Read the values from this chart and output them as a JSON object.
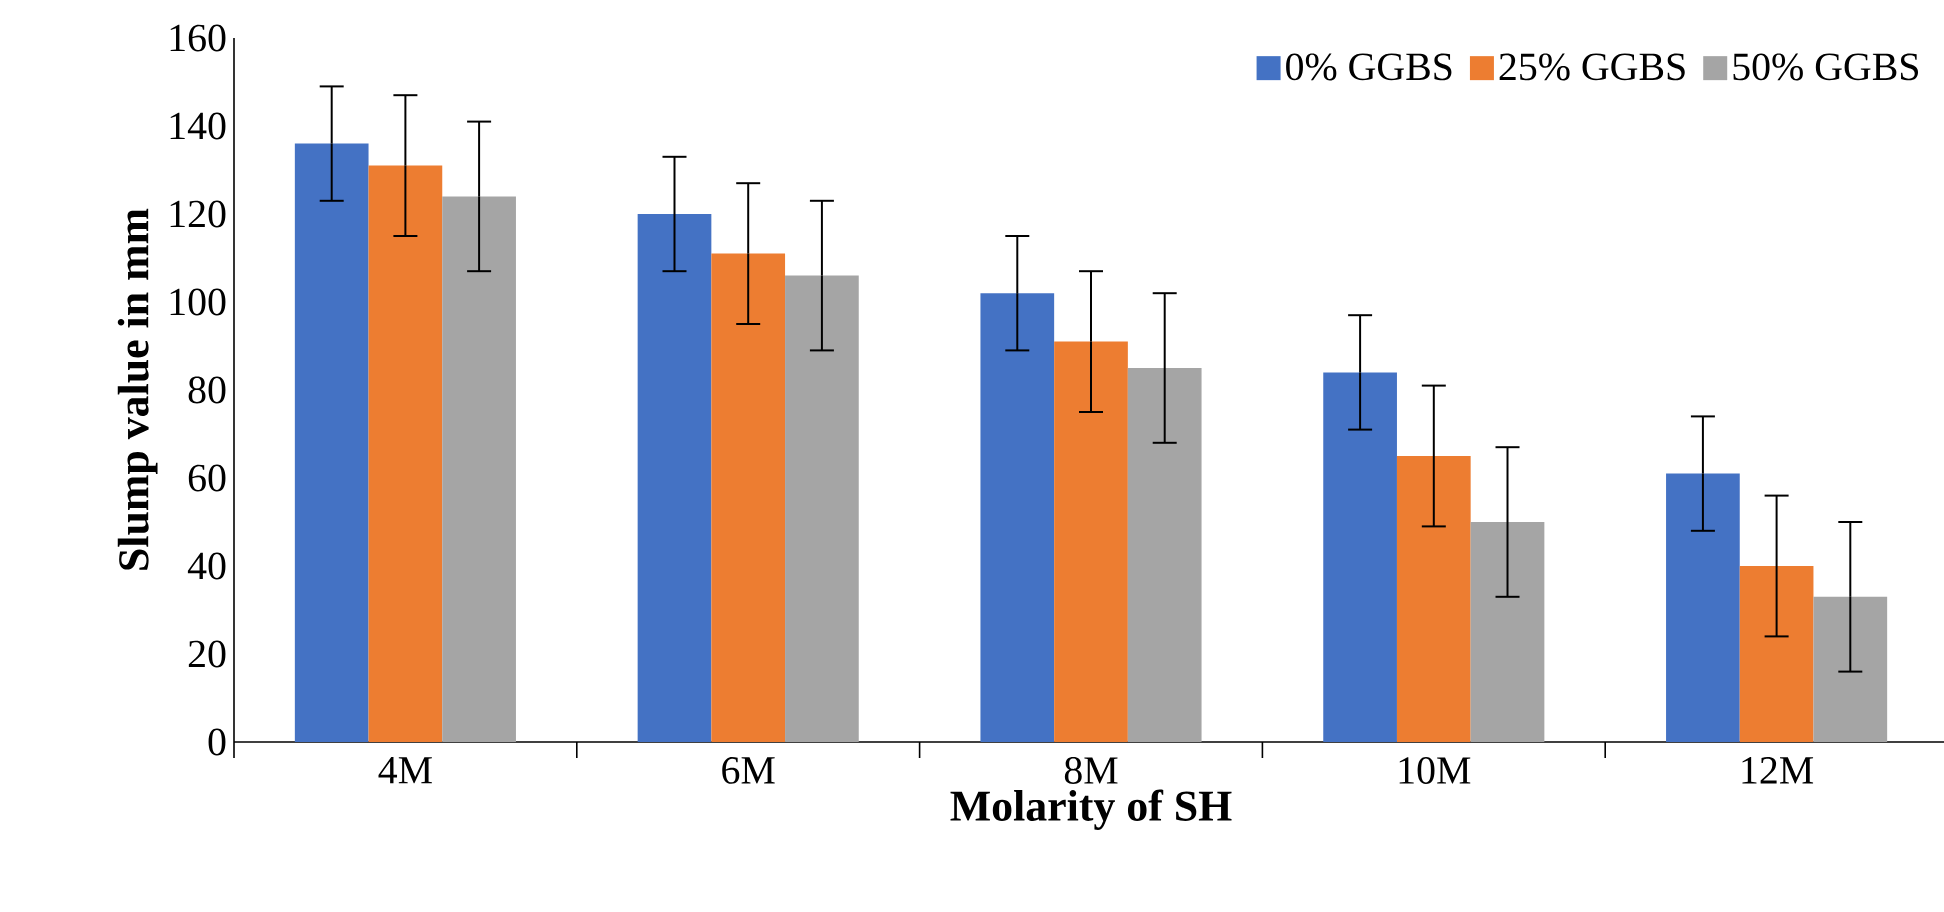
{
  "chart_data": {
    "type": "bar",
    "xlabel": "Molarity of SH",
    "ylabel": "Slump value in mm",
    "categories": [
      "4M",
      "6M",
      "8M",
      "10M",
      "12M"
    ],
    "series": [
      {
        "name": "0% GGBS",
        "color": "#4472c4",
        "values": [
          136,
          120,
          102,
          84,
          61
        ],
        "errors": [
          13,
          13,
          13,
          13,
          13
        ]
      },
      {
        "name": "25% GGBS",
        "color": "#ed7d31",
        "values": [
          131,
          111,
          91,
          65,
          40
        ],
        "errors": [
          16,
          16,
          16,
          16,
          16
        ]
      },
      {
        "name": "50% GGBS",
        "color": "#a5a5a5",
        "values": [
          124,
          106,
          85,
          50,
          33
        ],
        "errors": [
          17,
          17,
          17,
          17,
          17
        ]
      }
    ],
    "ylim": [
      0,
      160
    ],
    "yticks": [
      0,
      20,
      40,
      60,
      80,
      100,
      120,
      140,
      160
    ],
    "grid": false,
    "legend": "top right"
  }
}
